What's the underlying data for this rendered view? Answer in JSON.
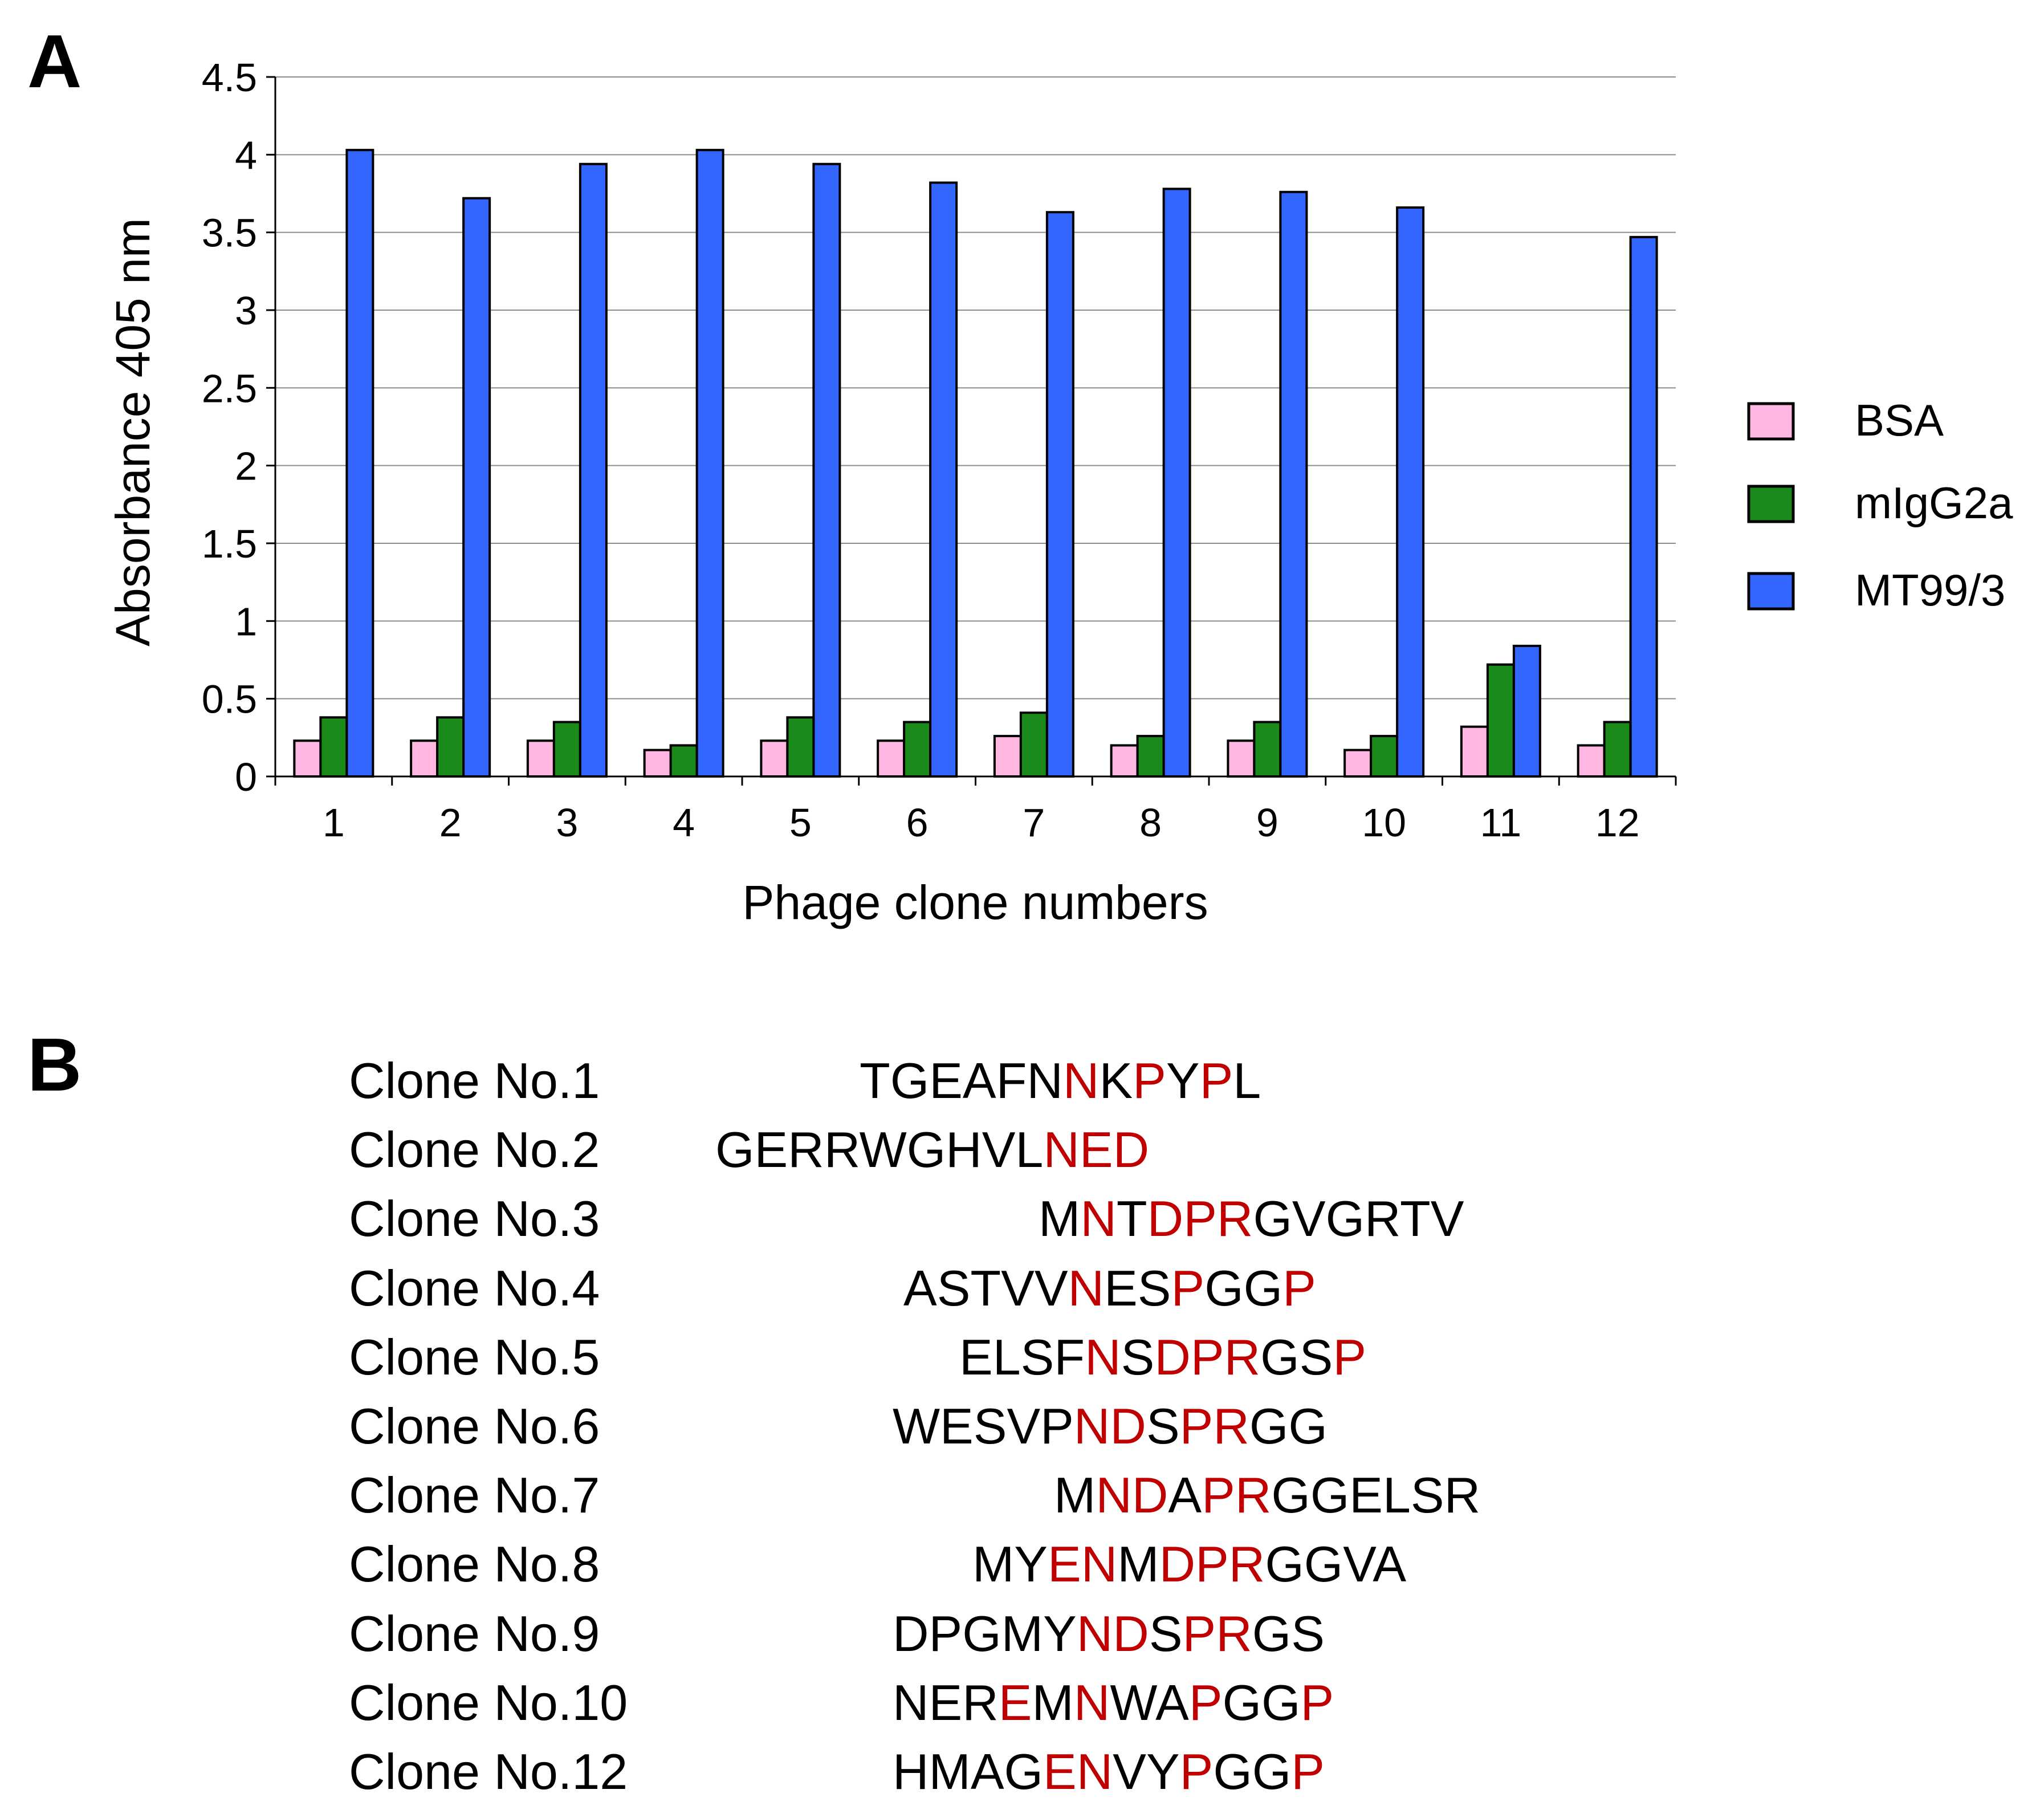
{
  "panels": {
    "a_label": "A",
    "b_label": "B"
  },
  "chart_data": {
    "type": "bar",
    "title": "",
    "xlabel": "Phage clone numbers",
    "ylabel": "Absorbance 405 nm",
    "ylim": [
      0,
      4.5
    ],
    "yticks": [
      "0",
      "0.5",
      "1",
      "1.5",
      "2",
      "2.5",
      "3",
      "3.5",
      "4",
      "4.5"
    ],
    "grid": true,
    "legend_position": "right",
    "categories": [
      "1",
      "2",
      "3",
      "4",
      "5",
      "6",
      "7",
      "8",
      "9",
      "10",
      "11",
      "12"
    ],
    "series": [
      {
        "name": "BSA",
        "color": "#ffb6e1",
        "values": [
          0.23,
          0.23,
          0.23,
          0.17,
          0.23,
          0.23,
          0.26,
          0.2,
          0.23,
          0.17,
          0.32,
          0.2
        ]
      },
      {
        "name": "mIgG2a",
        "color": "#1a8a1a",
        "values": [
          0.38,
          0.38,
          0.35,
          0.2,
          0.38,
          0.35,
          0.41,
          0.26,
          0.35,
          0.26,
          0.72,
          0.35
        ]
      },
      {
        "name": "MT99/3",
        "color": "#3366ff",
        "values": [
          4.03,
          3.72,
          3.94,
          4.03,
          3.94,
          3.82,
          3.63,
          3.78,
          3.76,
          3.66,
          0.84,
          3.47
        ]
      }
    ]
  },
  "sequences": [
    {
      "label": "Clone No.1",
      "segments": [
        [
          "TGEAFN",
          false
        ],
        [
          "N",
          true
        ],
        [
          "K",
          false
        ],
        [
          "P",
          true
        ],
        [
          "Y",
          false
        ],
        [
          "P",
          true
        ],
        [
          "L",
          false
        ]
      ]
    },
    {
      "label": "Clone No.2",
      "segments": [
        [
          "GERRWGHVL",
          false
        ],
        [
          "NED",
          true
        ]
      ]
    },
    {
      "label": "Clone No.3",
      "segments": [
        [
          "M",
          false
        ],
        [
          "N",
          true
        ],
        [
          "T",
          false
        ],
        [
          "DPR",
          true
        ],
        [
          "GVGRTV",
          false
        ]
      ]
    },
    {
      "label": "Clone No.4",
      "segments": [
        [
          "ASTVV",
          false
        ],
        [
          "N",
          true
        ],
        [
          "ES",
          false
        ],
        [
          "P",
          true
        ],
        [
          "GG",
          false
        ],
        [
          "P",
          true
        ]
      ]
    },
    {
      "label": "Clone No.5",
      "segments": [
        [
          "ELSF",
          false
        ],
        [
          "N",
          true
        ],
        [
          "S",
          false
        ],
        [
          "DPR",
          true
        ],
        [
          "GS",
          false
        ],
        [
          "P",
          true
        ]
      ]
    },
    {
      "label": "Clone No.6",
      "segments": [
        [
          "WESVP",
          false
        ],
        [
          "ND",
          true
        ],
        [
          "S",
          false
        ],
        [
          "PR",
          true
        ],
        [
          "GG",
          false
        ]
      ]
    },
    {
      "label": "Clone No.7",
      "segments": [
        [
          "M",
          false
        ],
        [
          "ND",
          true
        ],
        [
          "A",
          false
        ],
        [
          "PR",
          true
        ],
        [
          "GGELSR",
          false
        ]
      ]
    },
    {
      "label": "Clone No.8",
      "segments": [
        [
          "MY",
          false
        ],
        [
          "EN",
          true
        ],
        [
          "M",
          false
        ],
        [
          "DPR",
          true
        ],
        [
          "GGVA",
          false
        ]
      ]
    },
    {
      "label": "Clone No.9",
      "segments": [
        [
          "DPGMY",
          false
        ],
        [
          "ND",
          true
        ],
        [
          "S",
          false
        ],
        [
          "PR",
          true
        ],
        [
          "GS",
          false
        ]
      ]
    },
    {
      "label": "Clone No.10",
      "segments": [
        [
          "NER",
          false
        ],
        [
          "E",
          true
        ],
        [
          "M",
          false
        ],
        [
          "N",
          true
        ],
        [
          "WA",
          false
        ],
        [
          "P",
          true
        ],
        [
          "GG",
          false
        ],
        [
          "P",
          true
        ]
      ]
    },
    {
      "label": "Clone No.12",
      "segments": [
        [
          "HMAG",
          false
        ],
        [
          "EN",
          true
        ],
        [
          "VY",
          false
        ],
        [
          "P",
          true
        ],
        [
          "GG",
          false
        ],
        [
          "P",
          true
        ]
      ]
    }
  ]
}
